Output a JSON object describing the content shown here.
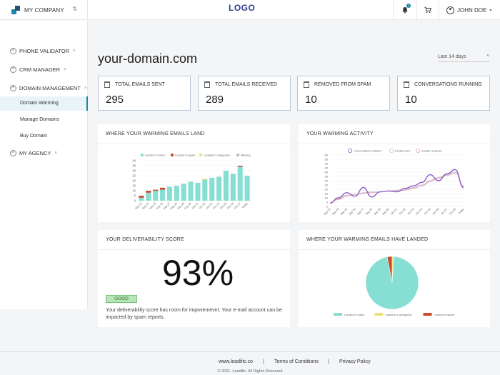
{
  "header": {
    "company": "MY COMPANY",
    "logo": "LOGO",
    "notification_count": "1",
    "user_name": "JOHN DOE"
  },
  "sidebar": {
    "items": [
      {
        "label": "PHONE VALIDATOR"
      },
      {
        "label": "CRM MANAGER"
      },
      {
        "label": "DOMAIN MANAGEMENT"
      },
      {
        "label": "MY AGENCY"
      }
    ],
    "sub_items": [
      {
        "label": "Domain Warming",
        "active": true
      },
      {
        "label": "Manage Domains"
      },
      {
        "label": "Buy Domain"
      }
    ]
  },
  "main": {
    "domain": "your-domain.com",
    "period": "Last 14 days",
    "stats": [
      {
        "label": "TOTAL EMAILS SENT",
        "value": "295"
      },
      {
        "label": "TOTAL EMAILS RECEIVED",
        "value": "289"
      },
      {
        "label": "REMOVED FROM SPAM",
        "value": "10"
      },
      {
        "label": "CONVERSATIONS RUNNING",
        "value": "10"
      }
    ],
    "cards": {
      "land_title": "WHERE YOUR WARMING EMAILS LAND",
      "activity_title": "YOUR WARMING ACTIVITY",
      "deliverability_title": "YOUR DELIVERABILITY SCORE",
      "landed_title": "WHERE YOUR WARMING EMAILS HAVE LANDED"
    },
    "score": "93%",
    "score_badge": "GOOD",
    "score_text": "Your deliverability score has room for impovemevnt. Your e-mail account can be impacted by spam reports."
  },
  "footer": {
    "links": [
      "www.leadific.co",
      "Terms of Conditions",
      "Privacy Policy"
    ],
    "separator": "|",
    "copyright": "© 2021. Leadific. All Rights Reserved"
  },
  "colors": {
    "inbox": "#87dfd3",
    "spam": "#c94a2c",
    "categories": "#ece07a",
    "missing": "#bdbdbd",
    "conversations": "#8e5cc4",
    "sent": "#c9c9c9",
    "received": "#e7a6c2"
  },
  "chart_data": [
    {
      "type": "bar",
      "title": "WHERE YOUR WARMING EMAILS LAND",
      "categories": [
        "Sep 23",
        "Sep 24",
        "Sep 25",
        "Sep 26",
        "Sep 27",
        "Sep 28",
        "Sep 29",
        "Sep 30",
        "Oct 01",
        "Oct 02",
        "Oct 03",
        "Oct 04",
        "Oct 05",
        "Oct 06",
        "Oct 07",
        "Today"
      ],
      "series": [
        {
          "name": "Landed in inbox",
          "values": [
            3,
            8,
            10,
            11,
            14,
            15,
            17,
            19,
            18,
            21,
            23,
            24,
            30,
            27,
            34,
            25
          ]
        },
        {
          "name": "Landed in spam",
          "values": [
            2,
            2,
            1,
            2,
            0,
            0,
            0,
            0,
            0,
            0,
            0,
            0,
            0,
            0,
            1,
            0
          ]
        },
        {
          "name": "Landed in categories",
          "values": [
            0,
            0,
            0,
            0,
            0,
            0,
            0,
            0,
            0,
            1,
            0,
            0,
            0,
            0,
            0,
            0
          ]
        },
        {
          "name": "Missing",
          "values": [
            0,
            0,
            0,
            0,
            0,
            0,
            0,
            0,
            0,
            0,
            0,
            0,
            0,
            0,
            0,
            0
          ]
        }
      ],
      "ylim": [
        0,
        40
      ],
      "yticks": [
        "0",
        "5",
        "10",
        "15",
        "20",
        "25",
        "30",
        "35",
        "40"
      ],
      "stacked": true,
      "legend": "top"
    },
    {
      "type": "line",
      "title": "YOUR WARMING ACTIVITY",
      "categories": [
        "Sep 23",
        "Sep 24",
        "Sep 25",
        "Sep 26",
        "Sep 27",
        "Sep 28",
        "Sep 29",
        "Sep 30",
        "Oct 01",
        "Oct 02",
        "Oct 03",
        "Oct 04",
        "Oct 05",
        "Oct 06",
        "Oct 07",
        "Oct 08",
        "Today"
      ],
      "series": [
        {
          "name": "Conversations started",
          "values": [
            4,
            10,
            16,
            12,
            22,
            11,
            17,
            18,
            17,
            21,
            24,
            28,
            37,
            30,
            38,
            43,
            22
          ]
        },
        {
          "name": "Emails sent",
          "values": [
            4,
            9,
            13,
            14,
            16,
            17,
            17,
            18,
            19,
            20,
            22,
            25,
            30,
            34,
            37,
            40,
            23
          ]
        },
        {
          "name": "Emails received",
          "values": [
            4,
            8,
            12,
            14,
            15,
            16,
            17,
            18,
            18,
            19,
            21,
            24,
            29,
            33,
            36,
            39,
            24
          ]
        }
      ],
      "ylim": [
        0,
        60
      ],
      "yticks": [
        "0",
        "5",
        "10",
        "15",
        "20",
        "25",
        "30",
        "35",
        "40",
        "45",
        "50",
        "55",
        "60"
      ],
      "legend": "top"
    },
    {
      "type": "pie",
      "title": "WHERE YOUR WARMING EMAILS HAVE LANDED",
      "labels": [
        "Landed in inbox",
        "Landed in categories",
        "Landed in spam"
      ],
      "values": [
        96,
        1,
        3
      ],
      "legend": "bottom"
    }
  ]
}
